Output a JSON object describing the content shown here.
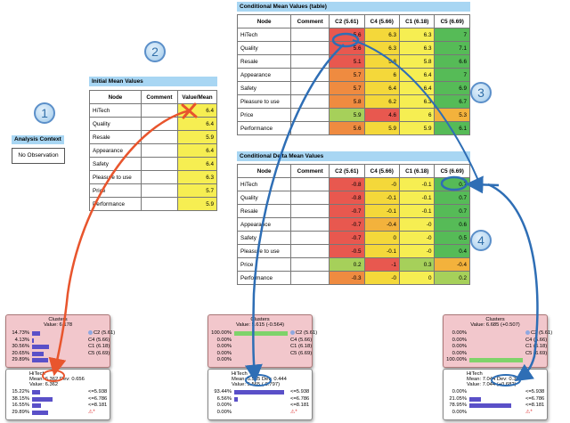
{
  "circles": [
    "1",
    "2",
    "3",
    "4"
  ],
  "analysis_context": {
    "title": "Analysis Context",
    "value": "No Observation"
  },
  "initial_mean": {
    "title": "Initial Mean Values",
    "headers": [
      "Node",
      "Comment",
      "Value/Mean"
    ],
    "rows": [
      {
        "node": "HiTech",
        "value": "6.4"
      },
      {
        "node": "Quality",
        "value": "6.4"
      },
      {
        "node": "Resale",
        "value": "5.9"
      },
      {
        "node": "Appearance",
        "value": "6.4"
      },
      {
        "node": "Safety",
        "value": "6.4"
      },
      {
        "node": "Pleasure to use",
        "value": "6.3"
      },
      {
        "node": "Price",
        "value": "5.7"
      },
      {
        "node": "Performance",
        "value": "5.9"
      }
    ]
  },
  "conditional_mean": {
    "title": "Conditional Mean Values (table)",
    "headers": [
      "Node",
      "Comment",
      "C2 (5.61)",
      "C4 (5.66)",
      "C1 (6.18)",
      "C5 (6.69)"
    ],
    "rows": [
      {
        "node": "HiTech",
        "values": [
          "5.6",
          "6.3",
          "6.3",
          "7"
        ],
        "colors": [
          "#e8584f",
          "#f4d83a",
          "#f6ee52",
          "#56bb57"
        ]
      },
      {
        "node": "Quality",
        "values": [
          "5.6",
          "6.3",
          "6.3",
          "7.1"
        ],
        "colors": [
          "#e8584f",
          "#f4d83a",
          "#f6ee52",
          "#56bb57"
        ]
      },
      {
        "node": "Resale",
        "values": [
          "5.1",
          "5.8",
          "5.8",
          "6.6"
        ],
        "colors": [
          "#e8584f",
          "#f4d83a",
          "#f6ee52",
          "#56bb57"
        ]
      },
      {
        "node": "Appearance",
        "values": [
          "5.7",
          "6",
          "6.4",
          "7"
        ],
        "colors": [
          "#ef8b40",
          "#f4d83a",
          "#f6ee52",
          "#56bb57"
        ]
      },
      {
        "node": "Safety",
        "values": [
          "5.7",
          "6.4",
          "6.4",
          "6.9"
        ],
        "colors": [
          "#ef8b40",
          "#f4d83a",
          "#f6ee52",
          "#56bb57"
        ]
      },
      {
        "node": "Pleasure to use",
        "values": [
          "5.8",
          "6.2",
          "6.3",
          "6.7"
        ],
        "colors": [
          "#ef8b40",
          "#f4d83a",
          "#f6ee52",
          "#56bb57"
        ]
      },
      {
        "node": "Price",
        "values": [
          "5.9",
          "4.6",
          "6",
          "5.3"
        ],
        "colors": [
          "#a6d05a",
          "#e8584f",
          "#f6ee52",
          "#f3b23c"
        ]
      },
      {
        "node": "Performance",
        "values": [
          "5.6",
          "5.9",
          "5.9",
          "6.1"
        ],
        "colors": [
          "#ef8b40",
          "#f4d83a",
          "#f6ee52",
          "#56bb57"
        ]
      }
    ]
  },
  "conditional_delta": {
    "title": "Conditional Delta Mean Values",
    "headers": [
      "Node",
      "Comment",
      "C2 (5.61)",
      "C4 (5.66)",
      "C1 (6.18)",
      "C5 (6.69)"
    ],
    "rows": [
      {
        "node": "HiTech",
        "values": [
          "-0.8",
          "-0",
          "-0.1",
          "0.7"
        ],
        "colors": [
          "#e8584f",
          "#f4d83a",
          "#f6ee52",
          "#56bb57"
        ]
      },
      {
        "node": "Quality",
        "values": [
          "-0.8",
          "-0.1",
          "-0.1",
          "0.7"
        ],
        "colors": [
          "#e8584f",
          "#f4d83a",
          "#f6ee52",
          "#56bb57"
        ]
      },
      {
        "node": "Resale",
        "values": [
          "-0.7",
          "-0.1",
          "-0.1",
          "0.7"
        ],
        "colors": [
          "#e8584f",
          "#f4d83a",
          "#f6ee52",
          "#56bb57"
        ]
      },
      {
        "node": "Appearance",
        "values": [
          "-0.7",
          "-0.4",
          "-0",
          "0.6"
        ],
        "colors": [
          "#e8584f",
          "#f3b23c",
          "#f6ee52",
          "#56bb57"
        ]
      },
      {
        "node": "Safety",
        "values": [
          "-0.7",
          "0",
          "-0",
          "0.5"
        ],
        "colors": [
          "#e8584f",
          "#f4d83a",
          "#f6ee52",
          "#56bb57"
        ]
      },
      {
        "node": "Pleasure to use",
        "values": [
          "-0.5",
          "-0.1",
          "-0",
          "0.4"
        ],
        "colors": [
          "#e8584f",
          "#f4d83a",
          "#f6ee52",
          "#56bb57"
        ]
      },
      {
        "node": "Price",
        "values": [
          "0.2",
          "-1",
          "0.3",
          "-0.4"
        ],
        "colors": [
          "#a6d05a",
          "#e8584f",
          "#a6d05a",
          "#f3b23c"
        ]
      },
      {
        "node": "Performance",
        "values": [
          "-0.3",
          "-0",
          "0",
          "0.2"
        ],
        "colors": [
          "#ef8b40",
          "#f4d83a",
          "#f6ee52",
          "#a6d05a"
        ]
      }
    ]
  },
  "monitors": [
    {
      "clusters_title": "Clusters",
      "clusters_value": "Value: 6.178",
      "clusters_rows": [
        {
          "pct": "14.73%",
          "bar": 0.15,
          "label": "C2 (5.61)",
          "dot": true
        },
        {
          "pct": "4.13%",
          "bar": 0.04,
          "label": "C4 (5.66)"
        },
        {
          "pct": "30.56%",
          "bar": 0.31,
          "label": "C1 (6.18)"
        },
        {
          "pct": "20.65%",
          "bar": 0.21,
          "label": "C5 (6.69)"
        },
        {
          "pct": "29.89%",
          "bar": 0.3,
          "label": ""
        }
      ],
      "node_title": "HiTech",
      "node_mean": "Mean: 6.362 Dev: 0.656",
      "node_value": "Value: 6.362",
      "node_rows": [
        {
          "pct": "15.22%",
          "bar": 0.15,
          "label": "<=5.938"
        },
        {
          "pct": "38.15%",
          "bar": 0.38,
          "label": "<=6.786"
        },
        {
          "pct": "16.55%",
          "bar": 0.17,
          "label": "<=8.181"
        },
        {
          "pct": "29.89%",
          "bar": 0.3,
          "label": ""
        }
      ],
      "icon": "⚠*"
    },
    {
      "clusters_title": "Clusters",
      "clusters_value": "Value: 5.615 (-0.564)",
      "clusters_rows": [
        {
          "pct": "100.00%",
          "bar": 1.0,
          "label": "C2 (5.61)",
          "dot": true,
          "green": true
        },
        {
          "pct": "0.00%",
          "bar": 0,
          "label": "C4 (5.66)"
        },
        {
          "pct": "0.00%",
          "bar": 0,
          "label": "C1 (6.18)"
        },
        {
          "pct": "0.00%",
          "bar": 0,
          "label": "C5 (6.69)"
        },
        {
          "pct": "0.00%",
          "bar": 0,
          "label": ""
        }
      ],
      "node_title": "HiTech",
      "node_mean": "Mean: 5.565 Dev: 0.444",
      "node_value": "Value: 5.565 (-0.797)",
      "node_rows": [
        {
          "pct": "93.44%",
          "bar": 0.93,
          "label": "<=5.938"
        },
        {
          "pct": "6.56%",
          "bar": 0.07,
          "label": "<=6.786"
        },
        {
          "pct": "0.00%",
          "bar": 0,
          "label": "<=8.181"
        },
        {
          "pct": "0.00%",
          "bar": 0,
          "label": ""
        }
      ],
      "icon": "⚠*"
    },
    {
      "clusters_title": "Clusters",
      "clusters_value": "Value: 6.685 (+0.507)",
      "clusters_rows": [
        {
          "pct": "0.00%",
          "bar": 0,
          "label": "C2 (5.61)",
          "dot": true
        },
        {
          "pct": "0.00%",
          "bar": 0,
          "label": "C4 (5.66)"
        },
        {
          "pct": "0.00%",
          "bar": 0,
          "label": "C1 (6.18)"
        },
        {
          "pct": "0.00%",
          "bar": 0,
          "label": "C5 (6.69)"
        },
        {
          "pct": "100.00%",
          "bar": 1.0,
          "label": "",
          "green": true
        }
      ],
      "node_title": "HiTech",
      "node_mean": "Mean: 7.044 Dev: 0.397",
      "node_value": "Value: 7.044 (+0.682)",
      "node_rows": [
        {
          "pct": "0.00%",
          "bar": 0,
          "label": "<=5.938"
        },
        {
          "pct": "21.05%",
          "bar": 0.21,
          "label": "<=6.786"
        },
        {
          "pct": "78.95%",
          "bar": 0.79,
          "label": "<=8.181"
        },
        {
          "pct": "0.00%",
          "bar": 0,
          "label": ""
        }
      ],
      "icon": "⚠*"
    }
  ],
  "colors": {
    "title_bg": "#a8d6f3",
    "red": "#e8584f",
    "green": "#56bb57",
    "yellow": "#f6ee52",
    "arrow_red": "#e8552d",
    "arrow_blue": "#2e6eb5"
  }
}
